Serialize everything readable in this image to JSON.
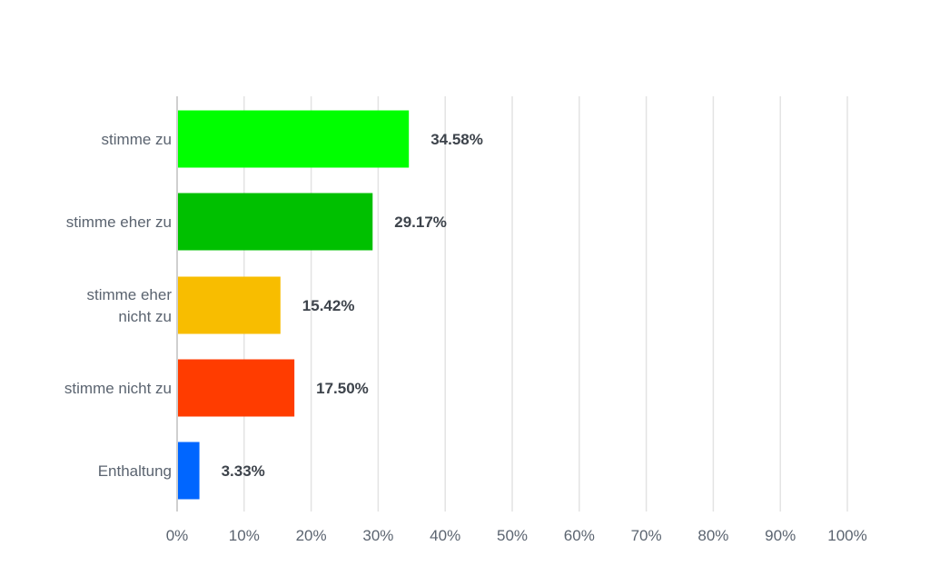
{
  "chart_data": {
    "type": "bar",
    "orientation": "horizontal",
    "categories": [
      [
        "stimme zu"
      ],
      [
        "stimme eher zu"
      ],
      [
        "stimme eher",
        "nicht zu"
      ],
      [
        "stimme nicht zu"
      ],
      [
        "Enthaltung"
      ]
    ],
    "values": [
      34.58,
      29.17,
      15.42,
      17.5,
      3.33
    ],
    "value_labels": [
      "34.58%",
      "29.17%",
      "15.42%",
      "17.50%",
      "3.33%"
    ],
    "colors": [
      "#00ff00",
      "#00c000",
      "#f8bd00",
      "#ff3c00",
      "#0066ff"
    ],
    "xlim": [
      0,
      100
    ],
    "x_ticks": [
      0,
      10,
      20,
      30,
      40,
      50,
      60,
      70,
      80,
      90,
      100
    ],
    "x_tick_labels": [
      "0%",
      "10%",
      "20%",
      "30%",
      "40%",
      "50%",
      "60%",
      "70%",
      "80%",
      "90%",
      "100%"
    ],
    "grid": true,
    "title": "",
    "xlabel": "",
    "ylabel": ""
  }
}
